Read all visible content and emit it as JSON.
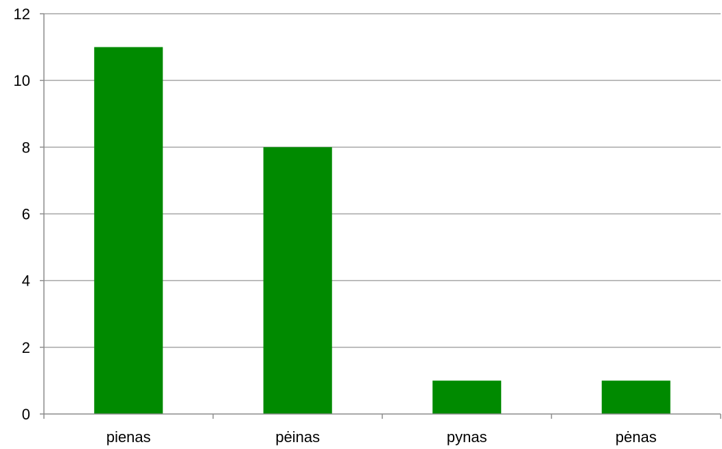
{
  "chart_data": {
    "type": "bar",
    "categories": [
      "pienas",
      "pėinas",
      "pynas",
      "pėnas"
    ],
    "values": [
      11,
      8,
      1,
      1
    ],
    "ylim": [
      0,
      12
    ],
    "yticks": [
      0,
      2,
      4,
      6,
      8,
      10,
      12
    ],
    "grid": true,
    "bar_color": "#008A00",
    "grid_color": "#A6A6A6",
    "axis_color": "#8C8C8C"
  }
}
